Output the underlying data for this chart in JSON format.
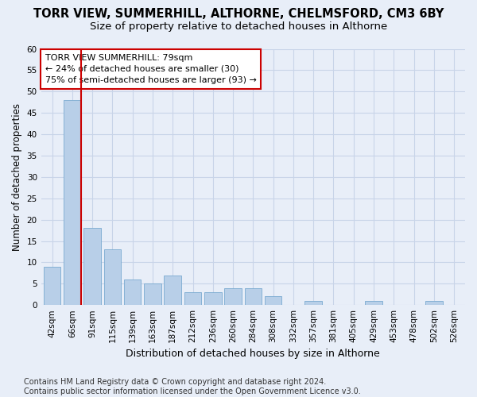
{
  "title": "TORR VIEW, SUMMERHILL, ALTHORNE, CHELMSFORD, CM3 6BY",
  "subtitle": "Size of property relative to detached houses in Althorne",
  "xlabel": "Distribution of detached houses by size in Althorne",
  "ylabel": "Number of detached properties",
  "bar_labels": [
    "42sqm",
    "66sqm",
    "91sqm",
    "115sqm",
    "139sqm",
    "163sqm",
    "187sqm",
    "212sqm",
    "236sqm",
    "260sqm",
    "284sqm",
    "308sqm",
    "332sqm",
    "357sqm",
    "381sqm",
    "405sqm",
    "429sqm",
    "453sqm",
    "478sqm",
    "502sqm",
    "526sqm"
  ],
  "bar_values": [
    9,
    48,
    18,
    13,
    6,
    5,
    7,
    3,
    3,
    4,
    4,
    2,
    0,
    1,
    0,
    0,
    1,
    0,
    0,
    1,
    0
  ],
  "bar_color": "#b8cfe8",
  "bar_edge_color": "#7aaad0",
  "reference_line_color": "#cc0000",
  "annotation_text": "TORR VIEW SUMMERHILL: 79sqm\n← 24% of detached houses are smaller (30)\n75% of semi-detached houses are larger (93) →",
  "annotation_box_color": "#ffffff",
  "annotation_box_edge_color": "#cc0000",
  "ylim": [
    0,
    60
  ],
  "yticks": [
    0,
    5,
    10,
    15,
    20,
    25,
    30,
    35,
    40,
    45,
    50,
    55,
    60
  ],
  "grid_color": "#c8d4e8",
  "footer_text": "Contains HM Land Registry data © Crown copyright and database right 2024.\nContains public sector information licensed under the Open Government Licence v3.0.",
  "background_color": "#e8eef8",
  "plot_background_color": "#e8eef8",
  "title_fontsize": 10.5,
  "subtitle_fontsize": 9.5,
  "tick_fontsize": 7.5,
  "ylabel_fontsize": 8.5,
  "xlabel_fontsize": 9,
  "annotation_fontsize": 8,
  "footer_fontsize": 7
}
